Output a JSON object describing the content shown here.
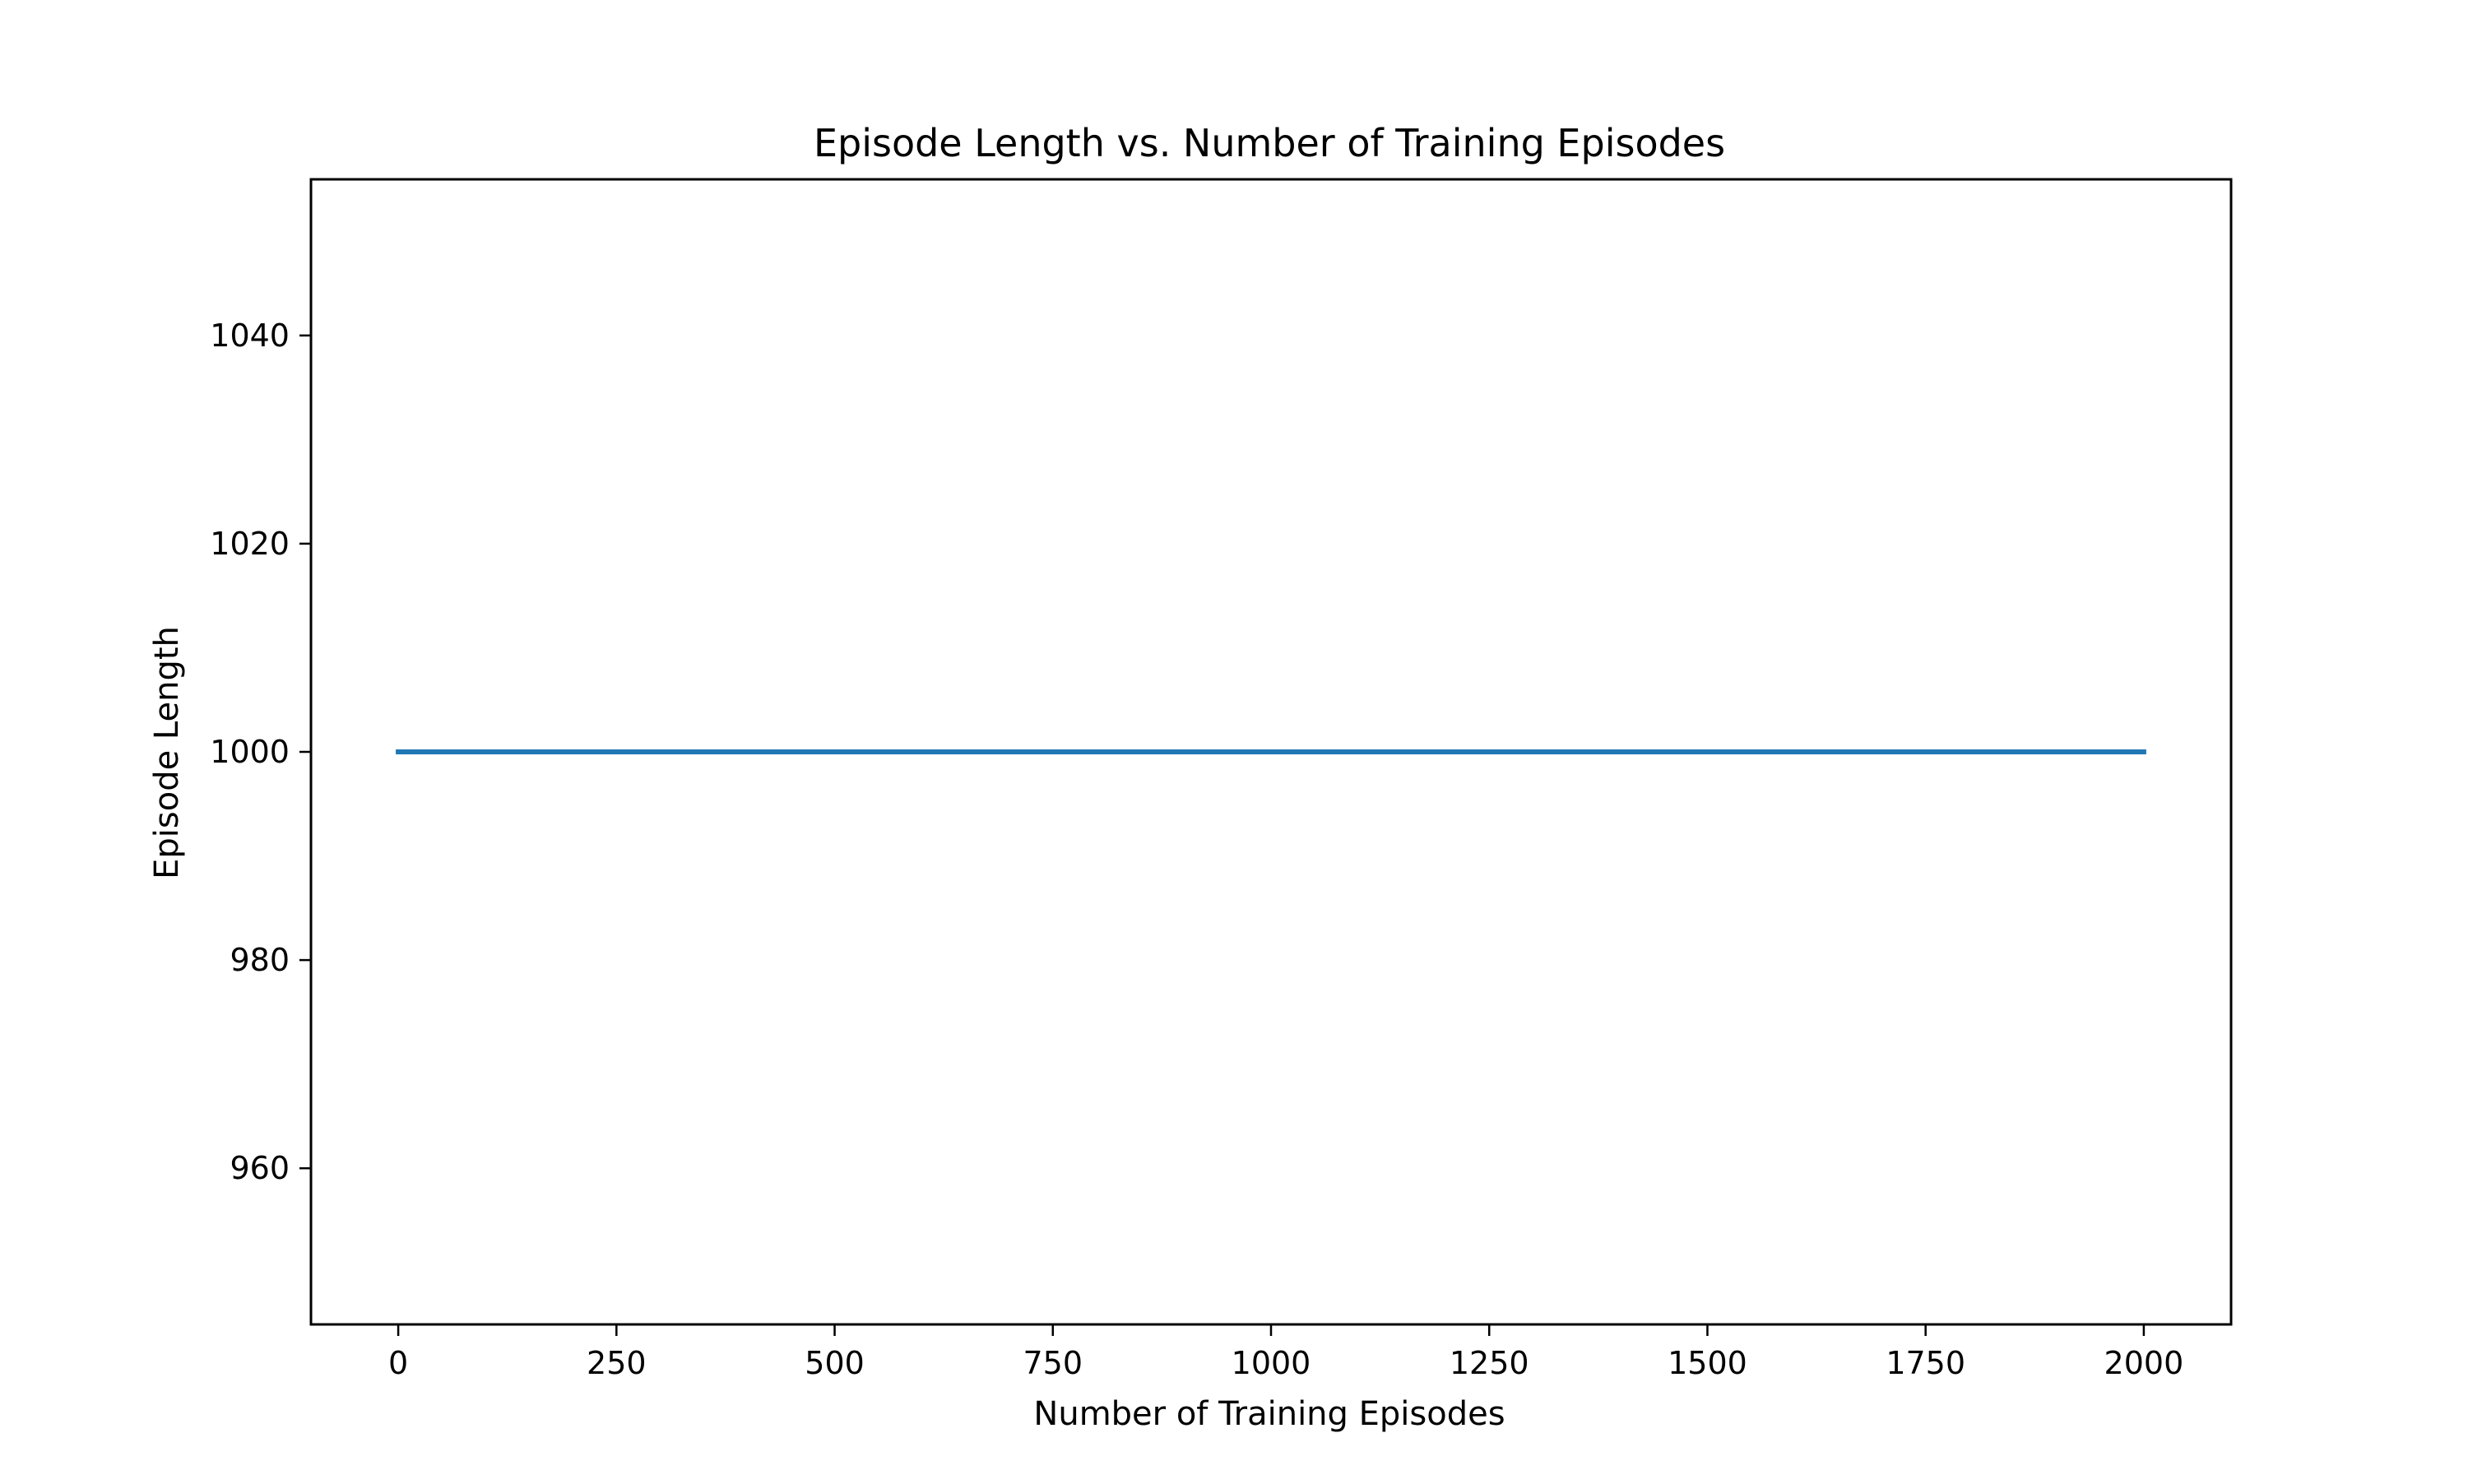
{
  "chart_data": {
    "type": "line",
    "title": "Episode Length vs. Number of Training Episodes",
    "xlabel": "Number of Training Episodes",
    "ylabel": "Episode Length",
    "xlim": [
      -100,
      2100
    ],
    "ylim": [
      945,
      1055
    ],
    "x_ticks": [
      0,
      250,
      500,
      750,
      1000,
      1250,
      1500,
      1750,
      2000
    ],
    "y_ticks": [
      960,
      980,
      1000,
      1020,
      1040
    ],
    "grid": false,
    "series": [
      {
        "name": "Episode Length",
        "color": "#1f77b4",
        "x": [
          0,
          2000
        ],
        "y": [
          1000,
          1000
        ]
      }
    ]
  }
}
